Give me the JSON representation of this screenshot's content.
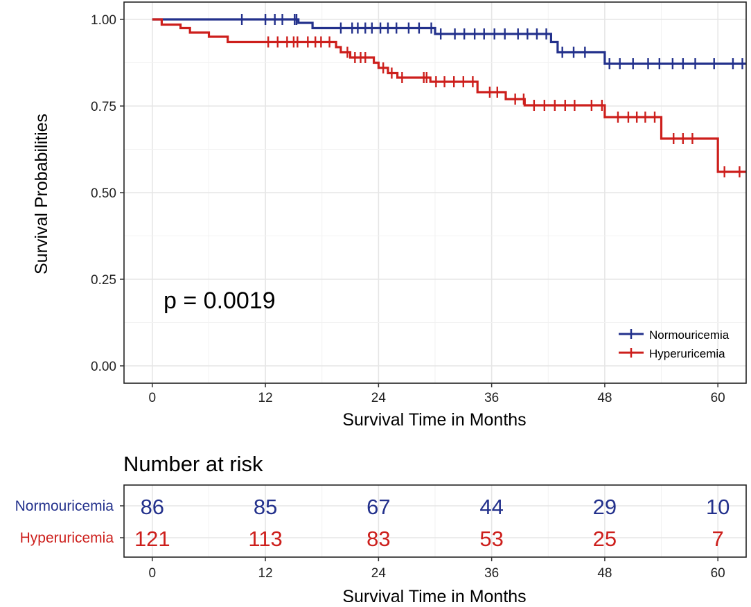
{
  "chart_data": [
    {
      "type": "kaplan-meier",
      "title": "",
      "xlabel": "Survival Time in Months",
      "ylabel": "Survival Probabilities",
      "xlim": [
        -3,
        63
      ],
      "ylim": [
        -0.05,
        1.05
      ],
      "x_ticks": [
        0,
        12,
        24,
        36,
        48,
        60
      ],
      "y_ticks": [
        0,
        0.25,
        0.5,
        0.75,
        1.0
      ],
      "x_tick_labels": [
        "0",
        "12",
        "24",
        "36",
        "48",
        "60"
      ],
      "y_tick_labels": [
        "0.00",
        "0.25",
        "0.50",
        "0.75",
        "1.00"
      ],
      "grid": true,
      "annotation": "p = 0.0019",
      "legend_position": "bottom-right",
      "series": [
        {
          "name": "Normouricemia",
          "color": "#23318C",
          "steps": [
            [
              0,
              1.0
            ],
            [
              15.5,
              1.0
            ],
            [
              15.5,
              0.99
            ],
            [
              17,
              0.99
            ],
            [
              17,
              0.975
            ],
            [
              30,
              0.975
            ],
            [
              30,
              0.958
            ],
            [
              42.3,
              0.958
            ],
            [
              42.3,
              0.935
            ],
            [
              43,
              0.935
            ],
            [
              43,
              0.905
            ],
            [
              48,
              0.905
            ],
            [
              48,
              0.872
            ],
            [
              63,
              0.872
            ]
          ],
          "censor_times": [
            9.5,
            12,
            13,
            13.8,
            15.1,
            15.3,
            20,
            21.2,
            21.8,
            22.6,
            23.3,
            24.2,
            25,
            25.9,
            27.2,
            28.3,
            29.6,
            30.6,
            32.1,
            33.1,
            34.2,
            35.2,
            36.3,
            37.4,
            38.8,
            39.8,
            40.8,
            41.8,
            43.5,
            44.7,
            45.9,
            48.5,
            49.6,
            51,
            52.6,
            53.8,
            55.2,
            56.3,
            57.6,
            59.6,
            61.6,
            62.6
          ]
        },
        {
          "name": "Hyperuricemia",
          "color": "#CD1F1C",
          "steps": [
            [
              0,
              1.0
            ],
            [
              1,
              1.0
            ],
            [
              1,
              0.985
            ],
            [
              3,
              0.985
            ],
            [
              3,
              0.975
            ],
            [
              4,
              0.975
            ],
            [
              4,
              0.962
            ],
            [
              6,
              0.962
            ],
            [
              6,
              0.95
            ],
            [
              8,
              0.95
            ],
            [
              8,
              0.935
            ],
            [
              19.5,
              0.935
            ],
            [
              19.5,
              0.92
            ],
            [
              20,
              0.92
            ],
            [
              20,
              0.905
            ],
            [
              21,
              0.905
            ],
            [
              21,
              0.89
            ],
            [
              23.5,
              0.89
            ],
            [
              23.5,
              0.875
            ],
            [
              24,
              0.875
            ],
            [
              24,
              0.86
            ],
            [
              25,
              0.86
            ],
            [
              25,
              0.845
            ],
            [
              26,
              0.845
            ],
            [
              26,
              0.832
            ],
            [
              29.5,
              0.832
            ],
            [
              29.5,
              0.82
            ],
            [
              34.5,
              0.82
            ],
            [
              34.5,
              0.79
            ],
            [
              37.5,
              0.79
            ],
            [
              37.5,
              0.77
            ],
            [
              39.5,
              0.77
            ],
            [
              39.5,
              0.752
            ],
            [
              48,
              0.752
            ],
            [
              48,
              0.718
            ],
            [
              54,
              0.718
            ],
            [
              54,
              0.656
            ],
            [
              60,
              0.656
            ],
            [
              60,
              0.56
            ],
            [
              63,
              0.56
            ]
          ]
        }
      ],
      "hyper_censor_times": [
        12.3,
        13.3,
        14.3,
        15,
        15.4,
        16.5,
        17.3,
        17.9,
        18.8,
        20.7,
        21.5,
        22.1,
        22.6,
        24.5,
        25.4,
        26.5,
        28.8,
        29.1,
        30.1,
        31,
        32,
        33,
        34,
        35.8,
        36.6,
        38.5,
        39.4,
        40.5,
        41.6,
        42.7,
        43.8,
        44.8,
        46.6,
        47.7,
        49.4,
        50.5,
        51.4,
        52.3,
        53.3,
        55.3,
        56.3,
        57.3,
        60.7,
        62.3
      ]
    },
    {
      "type": "table",
      "title": "Number at risk",
      "xlabel": "Survival Time in Months",
      "x_ticks": [
        0,
        12,
        24,
        36,
        48,
        60
      ],
      "x_tick_labels": [
        "0",
        "12",
        "24",
        "36",
        "48",
        "60"
      ],
      "rows": [
        {
          "name": "Normouricemia",
          "color": "#23318C",
          "values": [
            "86",
            "85",
            "67",
            "44",
            "29",
            "10"
          ]
        },
        {
          "name": "Hyperuricemia",
          "color": "#CD1F1C",
          "values": [
            "121",
            "113",
            "83",
            "53",
            "25",
            "7"
          ]
        }
      ]
    }
  ]
}
